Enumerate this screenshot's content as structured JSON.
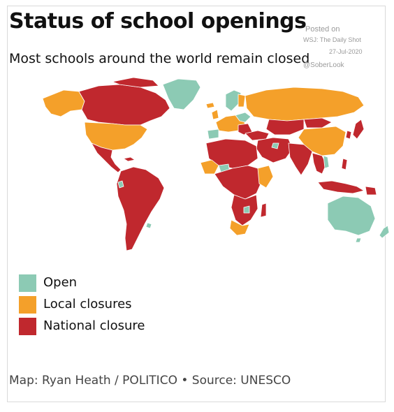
{
  "title": "Status of school openings",
  "subtitle": "Most schools around the world remain closed",
  "watermark": {
    "line1": "Posted on",
    "line2": "WSJ: The Daily Shot",
    "line3": "27-Jul-2020",
    "line4": "@SoberLook"
  },
  "colors": {
    "open": "#8ccab4",
    "local": "#f4a02a",
    "national": "#c0282e",
    "border": "#ffffff"
  },
  "legend": [
    {
      "label": "Open",
      "color": "#8ccab4"
    },
    {
      "label": "Local closures",
      "color": "#f4a02a"
    },
    {
      "label": "National closure",
      "color": "#c0282e"
    }
  ],
  "source": "Map: Ryan Heath / POLITICO • Source: UNESCO"
}
